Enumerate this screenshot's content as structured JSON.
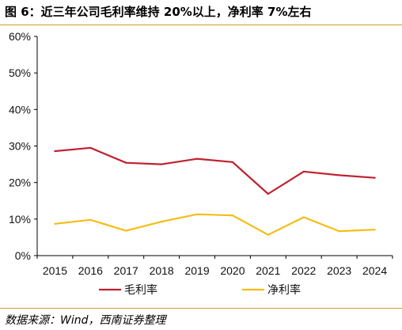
{
  "title": "图 6：近三年公司毛利率维持 20%以上，净利率 7%左右",
  "source": "数据来源：Wind，西南证券整理",
  "colors": {
    "rule": "#c9a227",
    "gross": "#c0212f",
    "net": "#f5bd14"
  },
  "chart_data": {
    "type": "line",
    "x": [
      "2015",
      "2016",
      "2017",
      "2018",
      "2019",
      "2020",
      "2021",
      "2022",
      "2023",
      "2024"
    ],
    "series": [
      {
        "name": "毛利率",
        "color": "#c0212f",
        "values": [
          28.6,
          29.5,
          25.4,
          25.0,
          26.5,
          25.6,
          16.9,
          23.0,
          22.0,
          21.3
        ]
      },
      {
        "name": "净利率",
        "color": "#f5bd14",
        "values": [
          8.7,
          9.8,
          6.8,
          9.3,
          11.3,
          11.0,
          5.7,
          10.5,
          6.7,
          7.1
        ]
      }
    ],
    "yticks": [
      "0%",
      "10%",
      "20%",
      "30%",
      "40%",
      "50%",
      "60%"
    ],
    "ylim": [
      0,
      60
    ],
    "legend": "bottom",
    "grid": false
  }
}
